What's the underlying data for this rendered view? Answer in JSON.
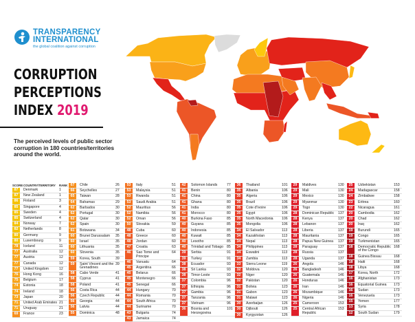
{
  "logo": {
    "line1": "TRANSPARENCY",
    "line2": "INTERNATIONAL",
    "tagline": "the global coalition against corruption"
  },
  "title": {
    "line1": "CORRUPTION",
    "line2": "PERCEPTIONS",
    "line3": "INDEX",
    "year": "2019"
  },
  "subtitle": "The perceived levels of public sector corruption in 180 countries/territories around the world.",
  "table_header": {
    "score": "SCORE",
    "country": "COUNTRY/TERRITORY",
    "rank": "RANK"
  },
  "colors": {
    "80": "#f5c200",
    "70": "#f9a51a",
    "60": "#f7901e",
    "50": "#f47421",
    "40": "#ef5a24",
    "30": "#e83e28",
    "20": "#df1f2a",
    "10": "#b3151e",
    "brand": "#1f8fce",
    "year": "#e0196f"
  },
  "columns": [
    [
      [
        "87",
        "Denmark",
        "1"
      ],
      [
        "87",
        "New Zealand",
        "1"
      ],
      [
        "86",
        "Finland",
        "3"
      ],
      [
        "85",
        "Singapore",
        "4"
      ],
      [
        "85",
        "Sweden",
        "4"
      ],
      [
        "85",
        "Switzerland",
        "4"
      ],
      [
        "84",
        "Norway",
        "7"
      ],
      [
        "82",
        "Netherlands",
        "8"
      ],
      [
        "80",
        "Germany",
        "9"
      ],
      [
        "80",
        "Luxembourg",
        "9"
      ],
      [
        "78",
        "Iceland",
        "11"
      ],
      [
        "77",
        "Australia",
        "12"
      ],
      [
        "77",
        "Austria",
        "12"
      ],
      [
        "77",
        "Canada",
        "12"
      ],
      [
        "77",
        "United Kingdom",
        "12"
      ],
      [
        "76",
        "Hong Kong",
        "16"
      ],
      [
        "75",
        "Belgium",
        "17"
      ],
      [
        "74",
        "Estonia",
        "18"
      ],
      [
        "74",
        "Ireland",
        "18"
      ],
      [
        "73",
        "Japan",
        "20"
      ],
      [
        "71",
        "United Arab Emirates",
        "21"
      ],
      [
        "71",
        "Uruguay",
        "21"
      ],
      [
        "69",
        "France",
        "23"
      ]
    ],
    [
      [
        "67",
        "Chile",
        "26"
      ],
      [
        "66",
        "Seychelles",
        "27"
      ],
      [
        "65",
        "Taiwan",
        "28"
      ],
      [
        "64",
        "Bahamas",
        "29"
      ],
      [
        "62",
        "Barbados",
        "30"
      ],
      [
        "62",
        "Portugal",
        "30"
      ],
      [
        "62",
        "Qatar",
        "30"
      ],
      [
        "62",
        "Spain",
        "30"
      ],
      [
        "61",
        "Botswana",
        "34"
      ],
      [
        "60",
        "Brunei Darussalam",
        "35"
      ],
      [
        "60",
        "Israel",
        "35"
      ],
      [
        "60",
        "Lithuania",
        "35"
      ],
      [
        "60",
        "Slovenia",
        "35"
      ],
      [
        "59",
        "Korea, South",
        "39"
      ],
      [
        "59",
        "Saint Vincent and the Grenadines",
        "39"
      ],
      [
        "58",
        "Cabo Verde",
        "41"
      ],
      [
        "58",
        "Cyprus",
        "41"
      ],
      [
        "58",
        "Poland",
        "41"
      ],
      [
        "56",
        "Costa Rica",
        "44"
      ],
      [
        "56",
        "Czech Republic",
        "44"
      ],
      [
        "56",
        "Georgia",
        "44"
      ],
      [
        "56",
        "Latvia",
        "44"
      ],
      [
        "55",
        "Dominica",
        "48"
      ]
    ],
    [
      [
        "53",
        "Italy",
        "51"
      ],
      [
        "53",
        "Malaysia",
        "51"
      ],
      [
        "53",
        "Rwanda",
        "51"
      ],
      [
        "53",
        "Saudi Arabia",
        "51"
      ],
      [
        "52",
        "Mauritius",
        "56"
      ],
      [
        "52",
        "Namibia",
        "56"
      ],
      [
        "52",
        "Oman",
        "56"
      ],
      [
        "50",
        "Slovakia",
        "59"
      ],
      [
        "48",
        "Cuba",
        "60"
      ],
      [
        "48",
        "Greece",
        "60"
      ],
      [
        "48",
        "Jordan",
        "60"
      ],
      [
        "47",
        "Croatia",
        "63"
      ],
      [
        "46",
        "Sao Tome and Principe",
        "64"
      ],
      [
        "46",
        "Vanuatu",
        "64"
      ],
      [
        "45",
        "Argentina",
        "66"
      ],
      [
        "45",
        "Belarus",
        "66"
      ],
      [
        "45",
        "Montenegro",
        "66"
      ],
      [
        "45",
        "Senegal",
        "66"
      ],
      [
        "44",
        "Hungary",
        "70"
      ],
      [
        "44",
        "Romania",
        "70"
      ],
      [
        "44",
        "South Africa",
        "70"
      ],
      [
        "44",
        "Suriname",
        "70"
      ],
      [
        "43",
        "Bulgaria",
        "74"
      ],
      [
        "43",
        "Jamaica",
        "74"
      ]
    ],
    [
      [
        "42",
        "Solomon Islands",
        "77"
      ],
      [
        "41",
        "Benin",
        "80"
      ],
      [
        "41",
        "China",
        "80"
      ],
      [
        "41",
        "Ghana",
        "80"
      ],
      [
        "41",
        "India",
        "80"
      ],
      [
        "41",
        "Morocco",
        "80"
      ],
      [
        "40",
        "Burkina Faso",
        "85"
      ],
      [
        "40",
        "Guyana",
        "85"
      ],
      [
        "40",
        "Indonesia",
        "85"
      ],
      [
        "40",
        "Kuwait",
        "85"
      ],
      [
        "40",
        "Lesotho",
        "85"
      ],
      [
        "40",
        "Trinidad and Tobago",
        "85"
      ],
      [
        "39",
        "Serbia",
        "91"
      ],
      [
        "39",
        "Turkey",
        "91"
      ],
      [
        "38",
        "Ecuador",
        "93"
      ],
      [
        "38",
        "Sri Lanka",
        "93"
      ],
      [
        "38",
        "Timor-Leste",
        "93"
      ],
      [
        "37",
        "Colombia",
        "96"
      ],
      [
        "37",
        "Ethiopia",
        "96"
      ],
      [
        "37",
        "Gambia",
        "96"
      ],
      [
        "37",
        "Tanzania",
        "96"
      ],
      [
        "37",
        "Vietnam",
        "96"
      ],
      [
        "36",
        "Bosnia and Herzegovina",
        "101"
      ]
    ],
    [
      [
        "36",
        "Thailand",
        "101"
      ],
      [
        "35",
        "Albania",
        "106"
      ],
      [
        "35",
        "Algeria",
        "106"
      ],
      [
        "35",
        "Brazil",
        "106"
      ],
      [
        "35",
        "Cote d'Ivoire",
        "106"
      ],
      [
        "35",
        "Egypt",
        "106"
      ],
      [
        "35",
        "North Macedonia",
        "106"
      ],
      [
        "35",
        "Mongolia",
        "106"
      ],
      [
        "34",
        "El Salvador",
        "113"
      ],
      [
        "34",
        "Kazakhstan",
        "113"
      ],
      [
        "34",
        "Nepal",
        "113"
      ],
      [
        "34",
        "Philippines",
        "113"
      ],
      [
        "34",
        "Eswatini",
        "113"
      ],
      [
        "34",
        "Zambia",
        "113"
      ],
      [
        "33",
        "Sierra Leone",
        "119"
      ],
      [
        "32",
        "Moldova",
        "120"
      ],
      [
        "32",
        "Niger",
        "120"
      ],
      [
        "32",
        "Pakistan",
        "120"
      ],
      [
        "31",
        "Bolivia",
        "123"
      ],
      [
        "31",
        "Gabon",
        "123"
      ],
      [
        "31",
        "Malawi",
        "123"
      ],
      [
        "30",
        "Azerbaijan",
        "126"
      ],
      [
        "30",
        "Djibouti",
        "126"
      ],
      [
        "30",
        "Kyrgyzstan",
        "126"
      ]
    ],
    [
      [
        "29",
        "Maldives",
        "130"
      ],
      [
        "29",
        "Mali",
        "130"
      ],
      [
        "29",
        "Mexico",
        "130"
      ],
      [
        "29",
        "Myanmar",
        "130"
      ],
      [
        "29",
        "Togo",
        "130"
      ],
      [
        "28",
        "Dominican Republic",
        "137"
      ],
      [
        "28",
        "Kenya",
        "137"
      ],
      [
        "28",
        "Lebanon",
        "137"
      ],
      [
        "28",
        "Liberia",
        "137"
      ],
      [
        "28",
        "Mauritania",
        "137"
      ],
      [
        "28",
        "Papua New Guinea",
        "137"
      ],
      [
        "28",
        "Paraguay",
        "137"
      ],
      [
        "28",
        "Russia",
        "137"
      ],
      [
        "28",
        "Uganda",
        "137"
      ],
      [
        "26",
        "Angola",
        "146"
      ],
      [
        "26",
        "Bangladesh",
        "146"
      ],
      [
        "26",
        "Guatemala",
        "146"
      ],
      [
        "26",
        "Honduras",
        "146"
      ],
      [
        "26",
        "Iran",
        "146"
      ],
      [
        "26",
        "Mozambique",
        "146"
      ],
      [
        "26",
        "Nigeria",
        "146"
      ],
      [
        "25",
        "Cameroon",
        "153"
      ],
      [
        "25",
        "Central African Republic",
        "153"
      ]
    ],
    [
      [
        "25",
        "Uzbekistan",
        "153"
      ],
      [
        "24",
        "Madagascar",
        "158"
      ],
      [
        "24",
        "Zimbabwe",
        "158"
      ],
      [
        "23",
        "Eritrea",
        "160"
      ],
      [
        "22",
        "Nicaragua",
        "161"
      ],
      [
        "20",
        "Cambodia",
        "162"
      ],
      [
        "20",
        "Chad",
        "162"
      ],
      [
        "20",
        "Iraq",
        "162"
      ],
      [
        "19",
        "Burundi",
        "165"
      ],
      [
        "19",
        "Congo",
        "165"
      ],
      [
        "19",
        "Turkmenistan",
        "165"
      ],
      [
        "18",
        "Democratic Republic of the Congo",
        "168"
      ],
      [
        "18",
        "Guinea Bissau",
        "168"
      ],
      [
        "18",
        "Haiti",
        "168"
      ],
      [
        "18",
        "Libya",
        "168"
      ],
      [
        "17",
        "Korea, North",
        "172"
      ],
      [
        "16",
        "Afghanistan",
        "173"
      ],
      [
        "16",
        "Equatorial Guinea",
        "173"
      ],
      [
        "16",
        "Sudan",
        "173"
      ],
      [
        "16",
        "Venezuela",
        "173"
      ],
      [
        "15",
        "Yemen",
        "177"
      ],
      [
        "13",
        "Syria",
        "178"
      ],
      [
        "12",
        "South Sudan",
        "179"
      ]
    ]
  ]
}
